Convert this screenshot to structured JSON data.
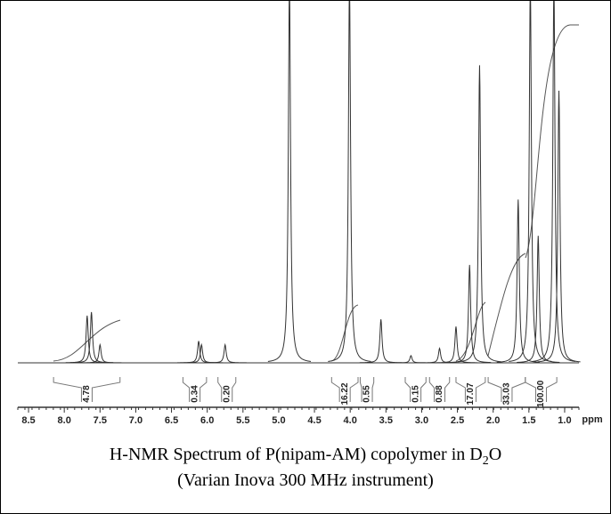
{
  "chart_data": {
    "type": "nmr",
    "title": "H-NMR Spectrum of P(nipam-AM) copolymer in D",
    "title_subscript": "2",
    "title_end": "O",
    "subtitle": "(Varian Inova 300 MHz instrument)",
    "x_label": "ppm",
    "xlim": [
      8.65,
      0.8
    ],
    "ylim": [
      0,
      100
    ],
    "xticks": [
      8.5,
      {
        "value": 8,
        "label": "8.0"
      },
      7.5,
      {
        "value": 7,
        "label": "7.0"
      },
      6.5,
      {
        "value": 6,
        "label": "6.0"
      },
      5.5,
      {
        "value": 5,
        "label": "5.0"
      },
      4.5,
      {
        "value": 4,
        "label": "4.0"
      },
      3.5,
      {
        "value": 3,
        "label": "3.0"
      },
      2.5,
      {
        "value": 2,
        "label": "2.0"
      },
      1.5,
      {
        "value": 1,
        "label": "1.0"
      }
    ],
    "peaks": {
      "x": [
        7.68,
        7.62,
        7.5,
        6.12,
        6.08,
        5.75,
        4.85,
        4.01,
        3.57,
        3.15,
        2.75,
        2.52,
        2.33,
        2.19,
        1.65,
        1.48,
        1.37,
        1.15,
        1.08
      ],
      "values": [
        13,
        14,
        5,
        6,
        5,
        5,
        105,
        105,
        12,
        2,
        4,
        10,
        27,
        82,
        45,
        105,
        35,
        105,
        75
      ],
      "color": "#333333"
    },
    "integrals": {
      "values": [
        4.78,
        0.34,
        0.2,
        16.22,
        0.55,
        0.15,
        0.88,
        17.07,
        33.03,
        100
      ],
      "value_labels": [
        "4.78",
        "0.34",
        "0.20",
        "16.22",
        "0.55",
        "0.15",
        "0.88",
        "17.07",
        "33.03",
        "100.00"
      ],
      "ranges": [
        [
          8.15,
          7.22
        ],
        [
          6.34,
          6.01
        ],
        [
          5.85,
          5.6
        ],
        [
          4.26,
          3.89
        ],
        [
          3.86,
          3.67
        ],
        [
          3.23,
          2.94
        ],
        [
          2.89,
          2.61
        ],
        [
          2.52,
          2.11
        ],
        [
          2.07,
          1.55
        ],
        [
          1.55,
          1.11
        ]
      ]
    }
  }
}
